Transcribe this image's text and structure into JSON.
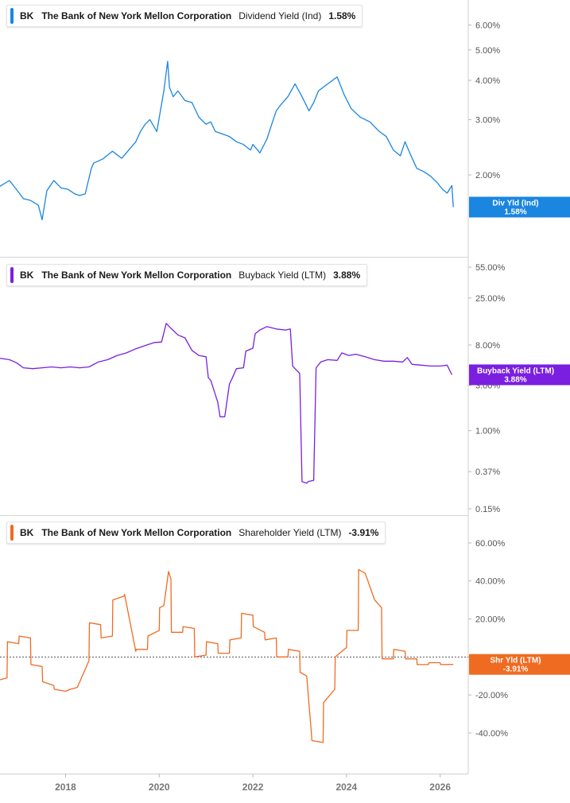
{
  "chart_data": [
    {
      "type": "line",
      "legend": {
        "ticker": "BK",
        "company": "The Bank of New York Mellon Corporation",
        "metric": "Dividend Yield (Ind)",
        "value": "1.58%"
      },
      "badge": {
        "label": "Div Yld (Ind)",
        "value": "1.58%"
      },
      "color": "#1a86e0",
      "scale": "log",
      "ylim": [
        1.15,
        6.8
      ],
      "ticks": [
        {
          "label": "6.00%",
          "v": 6.0
        },
        {
          "label": "5.00%",
          "v": 5.0
        },
        {
          "label": "4.00%",
          "v": 4.0
        },
        {
          "label": "3.00%",
          "v": 3.0
        },
        {
          "label": "2.00%",
          "v": 2.0
        }
      ],
      "series": {
        "x": [
          2016.6,
          2016.8,
          2016.95,
          2017.1,
          2017.25,
          2017.42,
          2017.5,
          2017.6,
          2017.75,
          2017.9,
          2018.05,
          2018.2,
          2018.3,
          2018.42,
          2018.55,
          2018.6,
          2018.8,
          2019.0,
          2019.2,
          2019.35,
          2019.5,
          2019.6,
          2019.7,
          2019.8,
          2019.95,
          2020.1,
          2020.18,
          2020.22,
          2020.3,
          2020.4,
          2020.55,
          2020.7,
          2020.85,
          2021.0,
          2021.1,
          2021.2,
          2021.35,
          2021.5,
          2021.65,
          2021.8,
          2021.95,
          2022.0,
          2022.15,
          2022.3,
          2022.42,
          2022.5,
          2022.6,
          2022.75,
          2022.9,
          2023.05,
          2023.2,
          2023.3,
          2023.4,
          2023.55,
          2023.7,
          2023.8,
          2023.95,
          2024.1,
          2024.3,
          2024.5,
          2024.7,
          2024.85,
          2025.0,
          2025.15,
          2025.25,
          2025.35,
          2025.5,
          2025.65,
          2025.8,
          2025.95,
          2026.05,
          2026.15,
          2026.25,
          2026.28
        ],
        "values": [
          1.84,
          1.92,
          1.8,
          1.68,
          1.66,
          1.6,
          1.44,
          1.78,
          1.92,
          1.82,
          1.8,
          1.74,
          1.72,
          1.74,
          2.1,
          2.18,
          2.25,
          2.38,
          2.26,
          2.4,
          2.55,
          2.75,
          2.9,
          3.0,
          2.75,
          3.7,
          4.6,
          3.8,
          3.55,
          3.7,
          3.45,
          3.4,
          3.05,
          2.9,
          2.95,
          2.75,
          2.7,
          2.65,
          2.55,
          2.5,
          2.4,
          2.5,
          2.35,
          2.6,
          2.95,
          3.2,
          3.35,
          3.55,
          3.9,
          3.55,
          3.2,
          3.4,
          3.7,
          3.85,
          4.0,
          4.1,
          3.6,
          3.25,
          3.05,
          2.95,
          2.75,
          2.65,
          2.4,
          2.3,
          2.55,
          2.35,
          2.1,
          2.05,
          1.98,
          1.88,
          1.8,
          1.75,
          1.85,
          1.58
        ]
      }
    },
    {
      "type": "line",
      "legend": {
        "ticker": "BK",
        "company": "The Bank of New York Mellon Corporation",
        "metric": "Buyback Yield (LTM)",
        "value": "3.88%"
      },
      "badge": {
        "label": "Buyback Yield (LTM)",
        "value": "3.88%"
      },
      "color": "#7a1fe0",
      "scale": "log",
      "ylim": [
        0.15,
        55
      ],
      "ticks": [
        {
          "label": "55.00%",
          "v": 55
        },
        {
          "label": "25.00%",
          "v": 25
        },
        {
          "label": "8.00%",
          "v": 8
        },
        {
          "label": "3.00%",
          "v": 3
        },
        {
          "label": "1.00%",
          "v": 1
        },
        {
          "label": "0.37%",
          "v": 0.37
        },
        {
          "label": "0.15%",
          "v": 0.15
        }
      ],
      "series": {
        "x": [
          2016.6,
          2016.8,
          2016.95,
          2017.1,
          2017.3,
          2017.5,
          2017.7,
          2017.9,
          2018.1,
          2018.3,
          2018.5,
          2018.7,
          2018.9,
          2019.1,
          2019.3,
          2019.5,
          2019.7,
          2019.9,
          2020.05,
          2020.15,
          2020.25,
          2020.4,
          2020.55,
          2020.7,
          2020.85,
          2021.0,
          2021.05,
          2021.1,
          2021.25,
          2021.3,
          2021.4,
          2021.5,
          2021.55,
          2021.65,
          2021.8,
          2021.85,
          2022.0,
          2022.05,
          2022.15,
          2022.3,
          2022.5,
          2022.7,
          2022.8,
          2022.85,
          2023.0,
          2023.05,
          2023.15,
          2023.18,
          2023.3,
          2023.35,
          2023.45,
          2023.6,
          2023.8,
          2023.9,
          2024.05,
          2024.2,
          2024.4,
          2024.6,
          2024.8,
          2025.0,
          2025.2,
          2025.3,
          2025.4,
          2025.6,
          2025.8,
          2026.0,
          2026.15,
          2026.25
        ],
        "values": [
          5.8,
          5.6,
          5.2,
          4.6,
          4.5,
          4.6,
          4.7,
          4.6,
          4.7,
          4.6,
          4.7,
          5.3,
          5.6,
          6.2,
          6.6,
          7.3,
          7.9,
          8.5,
          8.6,
          13.5,
          12.0,
          10.2,
          9.5,
          7.0,
          6.2,
          6.0,
          3.6,
          3.4,
          2.0,
          1.4,
          1.4,
          3.1,
          3.5,
          4.5,
          4.6,
          6.9,
          7.4,
          10.5,
          11.5,
          12.5,
          11.8,
          11.5,
          11.8,
          4.8,
          4.0,
          0.29,
          0.28,
          0.29,
          0.3,
          4.6,
          5.3,
          5.6,
          5.5,
          6.6,
          6.2,
          6.4,
          6.0,
          5.6,
          5.4,
          5.4,
          5.3,
          5.9,
          5.0,
          4.9,
          4.8,
          4.8,
          4.9,
          3.88
        ]
      }
    },
    {
      "type": "line",
      "legend": {
        "ticker": "BK",
        "company": "The Bank of New York Mellon Corporation",
        "metric": "Shareholder Yield (LTM)",
        "value": "-3.91%"
      },
      "badge": {
        "label": "Shr Yld (LTM)",
        "value": "-3.91%"
      },
      "color": "#f06b22",
      "scale": "linear",
      "ylim": [
        -58,
        70
      ],
      "ticks": [
        {
          "label": "60.00%",
          "v": 60
        },
        {
          "label": "40.00%",
          "v": 40
        },
        {
          "label": "20.00%",
          "v": 20
        },
        {
          "label": "0.00%",
          "v": 0
        },
        {
          "label": "-20.00%",
          "v": -20
        },
        {
          "label": "-40.00%",
          "v": -40
        }
      ],
      "zero_line": true,
      "series": {
        "x": [
          2016.6,
          2016.75,
          2016.76,
          2017.0,
          2017.01,
          2017.25,
          2017.26,
          2017.5,
          2017.51,
          2017.75,
          2017.76,
          2018.0,
          2018.1,
          2018.25,
          2018.5,
          2018.51,
          2018.75,
          2018.76,
          2019.0,
          2019.01,
          2019.25,
          2019.26,
          2019.5,
          2019.51,
          2019.75,
          2019.76,
          2020.0,
          2020.01,
          2020.1,
          2020.2,
          2020.25,
          2020.26,
          2020.5,
          2020.51,
          2020.75,
          2020.76,
          2021.0,
          2021.01,
          2021.25,
          2021.26,
          2021.5,
          2021.51,
          2021.75,
          2021.76,
          2022.0,
          2022.01,
          2022.25,
          2022.26,
          2022.5,
          2022.51,
          2022.75,
          2022.76,
          2023.0,
          2023.01,
          2023.15,
          2023.25,
          2023.26,
          2023.5,
          2023.51,
          2023.75,
          2023.76,
          2024.0,
          2024.01,
          2024.25,
          2024.26,
          2024.4,
          2024.6,
          2024.75,
          2024.76,
          2025.0,
          2025.01,
          2025.25,
          2025.26,
          2025.5,
          2025.51,
          2025.75,
          2025.76,
          2026.0,
          2026.01,
          2026.28
        ],
        "values": [
          -12,
          -11,
          8,
          7,
          11,
          10,
          -4,
          -5,
          -13,
          -15,
          -17,
          -18,
          -17,
          -16,
          -2,
          18,
          17,
          10,
          11,
          30,
          32,
          33,
          3,
          4,
          4,
          11,
          14,
          26,
          27,
          45,
          41,
          13,
          13,
          16,
          15,
          0,
          1,
          8,
          7,
          2,
          2,
          9,
          10,
          23,
          22,
          16,
          13,
          9,
          10,
          0,
          0,
          4,
          3,
          -8,
          -10,
          -40,
          -44,
          -45,
          -24,
          -17,
          0,
          5,
          14,
          14,
          46,
          44,
          30,
          26,
          -1,
          -1,
          4,
          3,
          -1,
          -1,
          -4,
          -4,
          -3,
          -3,
          -4,
          -3.91
        ]
      }
    }
  ],
  "x_axis": {
    "ticks": [
      {
        "label": "2018",
        "v": 2018
      },
      {
        "label": "2020",
        "v": 2020
      },
      {
        "label": "2022",
        "v": 2022
      },
      {
        "label": "2024",
        "v": 2024
      },
      {
        "label": "2026",
        "v": 2026
      }
    ]
  }
}
